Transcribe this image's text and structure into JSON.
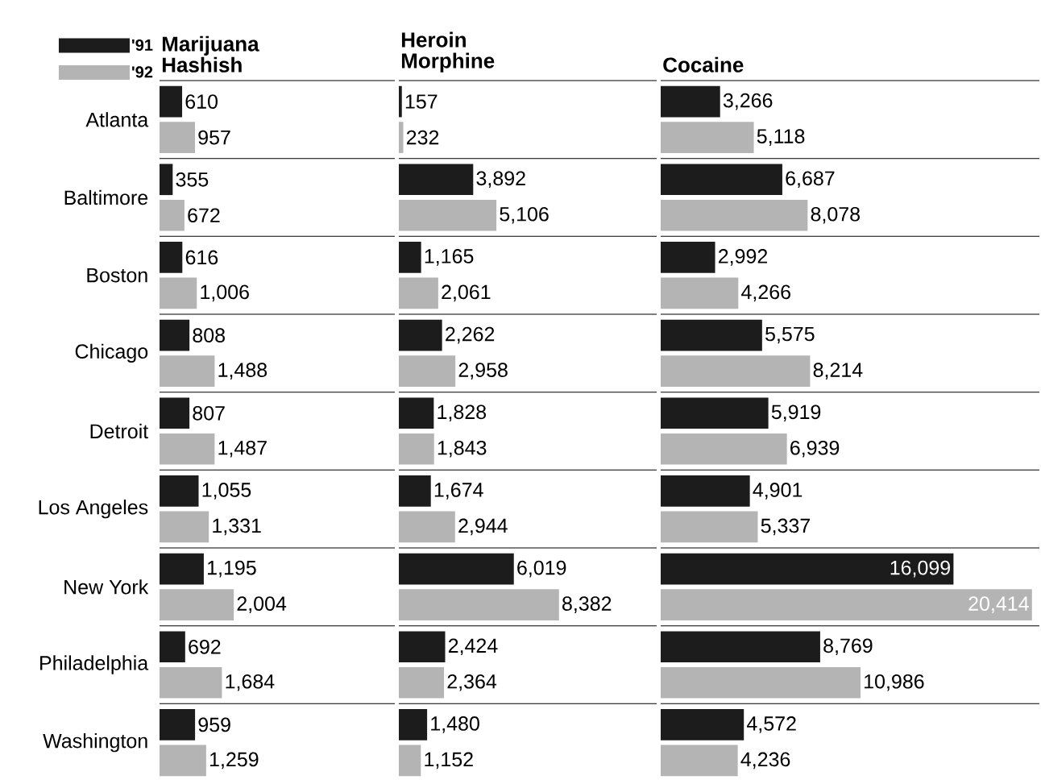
{
  "chart_data": [
    {
      "type": "bar",
      "orientation": "horizontal",
      "title": "Marijuana Hashish",
      "categories": [
        "Atlanta",
        "Baltimore",
        "Boston",
        "Chicago",
        "Detroit",
        "Los Angeles",
        "New York",
        "Philadelphia",
        "Washington"
      ],
      "series": [
        {
          "name": "'91",
          "color": "#1c1c1c",
          "values": [
            610,
            355,
            616,
            808,
            807,
            1055,
            1195,
            692,
            959
          ],
          "value_labels": [
            "610",
            "355",
            "616",
            "808",
            "807",
            "1,055",
            "1,195",
            "692",
            "959"
          ]
        },
        {
          "name": "'92",
          "color": "#b4b4b4",
          "values": [
            957,
            672,
            1006,
            1488,
            1487,
            1331,
            2004,
            1684,
            1259
          ],
          "value_labels": [
            "957",
            "672",
            "1,006",
            "1,488",
            "1,487",
            "1,331",
            "2,004",
            "1,684",
            "1,259"
          ]
        }
      ],
      "legend": "top left",
      "tick_labels": "y",
      "grid": "y"
    },
    {
      "type": "bar",
      "orientation": "horizontal",
      "title": "Heroin Morphine",
      "categories": [
        null,
        null,
        null,
        null,
        null,
        null,
        null,
        null,
        null
      ],
      "series": [
        {
          "color": "#1c1c1c",
          "values": [
            157,
            3892,
            1165,
            2262,
            1828,
            1674,
            6019,
            2424,
            1480
          ],
          "value_labels": [
            "157",
            "3,892",
            "1,165",
            "2,262",
            "1,828",
            "1,674",
            "6,019",
            "2,424",
            "1,480"
          ]
        },
        {
          "color": "#b4b4b4",
          "values": [
            232,
            5106,
            2061,
            2958,
            1843,
            2944,
            8382,
            2364,
            1152
          ],
          "value_labels": [
            "232",
            "5,106",
            "2,061",
            "2,958",
            "1,843",
            "2,944",
            "8,382",
            "2,364",
            "1,152"
          ]
        }
      ],
      "tick_labels": false,
      "grid": "y"
    },
    {
      "type": "bar",
      "orientation": "horizontal",
      "title": "Cocaine",
      "categories": [
        null,
        null,
        null,
        null,
        null,
        null,
        null,
        null,
        null
      ],
      "series": [
        {
          "color": "#1c1c1c",
          "values": [
            3266,
            6687,
            2992,
            5575,
            5919,
            4901,
            16099,
            8769,
            4572
          ],
          "value_labels": [
            "3,266",
            "6,687",
            "2,992",
            "5,575",
            "5,919",
            "4,901",
            "16,099",
            "8,769",
            "4,572"
          ]
        },
        {
          "color": "#b4b4b4",
          "values": [
            5118,
            8078,
            4266,
            8214,
            6939,
            5337,
            20414,
            10986,
            4236
          ],
          "value_labels": [
            "5,118",
            "8,078",
            "4,266",
            "8,214",
            "6,939",
            "5,337",
            "20,414",
            "10,986",
            "4,236"
          ]
        }
      ],
      "tick_labels": false,
      "grid": "y"
    }
  ]
}
